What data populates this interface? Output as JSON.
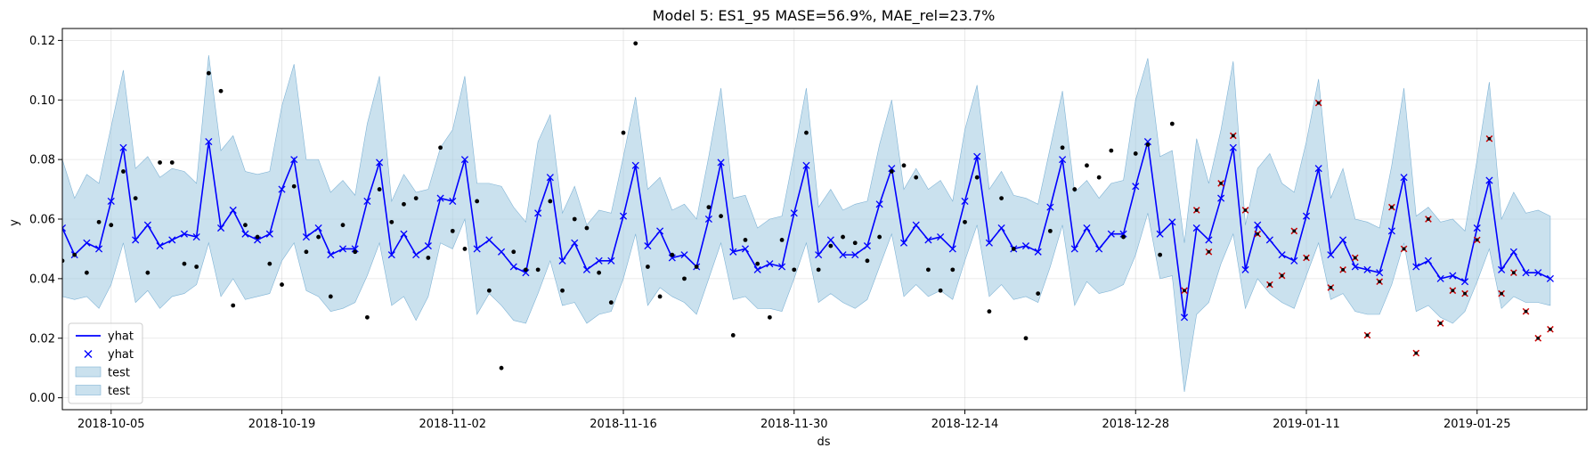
{
  "chart_data": {
    "type": "line",
    "title": "Model 5: ES1_95 MASE=56.9%, MAE_rel=23.7%",
    "xlabel": "ds",
    "ylabel": "y",
    "start_date": "2018-10-01",
    "xlim": [
      "2018-10-01",
      "2019-02-03"
    ],
    "ylim": [
      -0.004,
      0.124
    ],
    "grid": true,
    "x_ticks": [
      "2018-10-05",
      "2018-10-19",
      "2018-11-02",
      "2018-11-16",
      "2018-11-30",
      "2018-12-14",
      "2018-12-28",
      "2019-01-11",
      "2019-01-25"
    ],
    "y_ticks": [
      "0.00",
      "0.02",
      "0.04",
      "0.06",
      "0.08",
      "0.10",
      "0.12"
    ],
    "legend": {
      "position": "lower-left",
      "entries": [
        {
          "label": "yhat",
          "kind": "line"
        },
        {
          "label": "yhat",
          "kind": "marker"
        },
        {
          "label": "test",
          "kind": "patch"
        },
        {
          "label": "test",
          "kind": "patch"
        }
      ]
    },
    "colors": {
      "forecast": "#0000ff",
      "band": "#a6cde2",
      "band_edge": "#7fb3d5",
      "actual": "#000000",
      "test_marker": "#cc0000"
    },
    "test_start": "2019-01-01",
    "yhat": [
      0.057,
      0.048,
      0.052,
      0.05,
      0.066,
      0.084,
      0.053,
      0.058,
      0.051,
      0.053,
      0.055,
      0.054,
      0.086,
      0.057,
      0.063,
      0.055,
      0.053,
      0.055,
      0.07,
      0.08,
      0.054,
      0.057,
      0.048,
      0.05,
      0.05,
      0.066,
      0.079,
      0.048,
      0.055,
      0.048,
      0.051,
      0.067,
      0.066,
      0.08,
      0.05,
      0.053,
      0.049,
      0.044,
      0.042,
      0.062,
      0.074,
      0.046,
      0.052,
      0.043,
      0.046,
      0.046,
      0.061,
      0.078,
      0.051,
      0.056,
      0.047,
      0.048,
      0.044,
      0.06,
      0.079,
      0.049,
      0.05,
      0.043,
      0.045,
      0.044,
      0.062,
      0.078,
      0.048,
      0.053,
      0.048,
      0.048,
      0.051,
      0.065,
      0.077,
      0.052,
      0.058,
      0.053,
      0.054,
      0.05,
      0.066,
      0.081,
      0.052,
      0.057,
      0.05,
      0.051,
      0.049,
      0.064,
      0.08,
      0.05,
      0.057,
      0.05,
      0.055,
      0.055,
      0.071,
      0.086,
      0.055,
      0.059,
      0.027,
      0.057,
      0.053,
      0.067,
      0.084,
      0.043,
      0.058,
      0.053,
      0.048,
      0.046,
      0.061,
      0.077,
      0.048,
      0.053,
      0.044,
      0.043,
      0.042,
      0.056,
      0.074,
      0.044,
      0.046,
      0.04,
      0.041,
      0.039,
      0.057,
      0.073,
      0.043,
      0.049,
      0.042,
      0.042,
      0.04
    ],
    "lower": [
      0.034,
      0.033,
      0.034,
      0.03,
      0.038,
      0.052,
      0.032,
      0.036,
      0.03,
      0.034,
      0.035,
      0.038,
      0.052,
      0.034,
      0.04,
      0.033,
      0.034,
      0.035,
      0.046,
      0.052,
      0.036,
      0.034,
      0.029,
      0.03,
      0.032,
      0.041,
      0.052,
      0.031,
      0.034,
      0.026,
      0.034,
      0.052,
      0.05,
      0.06,
      0.028,
      0.035,
      0.031,
      0.026,
      0.025,
      0.035,
      0.046,
      0.031,
      0.032,
      0.025,
      0.028,
      0.029,
      0.04,
      0.055,
      0.031,
      0.037,
      0.034,
      0.032,
      0.028,
      0.04,
      0.052,
      0.033,
      0.034,
      0.03,
      0.03,
      0.029,
      0.04,
      0.052,
      0.032,
      0.035,
      0.032,
      0.03,
      0.033,
      0.044,
      0.055,
      0.034,
      0.038,
      0.034,
      0.036,
      0.033,
      0.046,
      0.058,
      0.034,
      0.038,
      0.033,
      0.034,
      0.032,
      0.044,
      0.058,
      0.031,
      0.039,
      0.035,
      0.036,
      0.038,
      0.048,
      0.062,
      0.04,
      0.041,
      0.002,
      0.028,
      0.032,
      0.045,
      0.055,
      0.03,
      0.04,
      0.035,
      0.032,
      0.03,
      0.041,
      0.052,
      0.033,
      0.035,
      0.029,
      0.028,
      0.028,
      0.038,
      0.052,
      0.029,
      0.031,
      0.027,
      0.025,
      0.029,
      0.039,
      0.05,
      0.03,
      0.034,
      0.032,
      0.032,
      0.031
    ],
    "upper": [
      0.08,
      0.067,
      0.075,
      0.072,
      0.091,
      0.11,
      0.077,
      0.081,
      0.074,
      0.077,
      0.076,
      0.072,
      0.115,
      0.083,
      0.088,
      0.076,
      0.075,
      0.076,
      0.098,
      0.112,
      0.08,
      0.08,
      0.069,
      0.073,
      0.068,
      0.092,
      0.108,
      0.066,
      0.075,
      0.069,
      0.07,
      0.084,
      0.09,
      0.108,
      0.072,
      0.072,
      0.071,
      0.064,
      0.059,
      0.086,
      0.095,
      0.062,
      0.071,
      0.058,
      0.063,
      0.062,
      0.081,
      0.101,
      0.07,
      0.074,
      0.063,
      0.065,
      0.06,
      0.081,
      0.104,
      0.067,
      0.068,
      0.057,
      0.06,
      0.061,
      0.082,
      0.104,
      0.064,
      0.07,
      0.063,
      0.065,
      0.066,
      0.085,
      0.1,
      0.07,
      0.077,
      0.07,
      0.073,
      0.066,
      0.09,
      0.105,
      0.07,
      0.076,
      0.068,
      0.067,
      0.065,
      0.084,
      0.103,
      0.069,
      0.073,
      0.067,
      0.072,
      0.073,
      0.1,
      0.114,
      0.081,
      0.083,
      0.052,
      0.087,
      0.072,
      0.09,
      0.113,
      0.058,
      0.077,
      0.082,
      0.072,
      0.069,
      0.086,
      0.107,
      0.067,
      0.077,
      0.06,
      0.059,
      0.057,
      0.078,
      0.104,
      0.061,
      0.064,
      0.059,
      0.06,
      0.056,
      0.08,
      0.106,
      0.06,
      0.069,
      0.062,
      0.063,
      0.061
    ],
    "actual": [
      [
        0,
        0.046
      ],
      [
        1,
        0.048
      ],
      [
        2,
        0.042
      ],
      [
        3,
        0.059
      ],
      [
        4,
        0.058
      ],
      [
        5,
        0.076
      ],
      [
        6,
        0.067
      ],
      [
        7,
        0.042
      ],
      [
        8,
        0.079
      ],
      [
        9,
        0.079
      ],
      [
        10,
        0.045
      ],
      [
        11,
        0.044
      ],
      [
        12,
        0.109
      ],
      [
        13,
        0.103
      ],
      [
        14,
        0.031
      ],
      [
        15,
        0.058
      ],
      [
        16,
        0.054
      ],
      [
        17,
        0.045
      ],
      [
        18,
        0.038
      ],
      [
        19,
        0.071
      ],
      [
        20,
        0.049
      ],
      [
        21,
        0.054
      ],
      [
        22,
        0.034
      ],
      [
        23,
        0.058
      ],
      [
        24,
        0.049
      ],
      [
        25,
        0.027
      ],
      [
        26,
        0.07
      ],
      [
        27,
        0.059
      ],
      [
        28,
        0.065
      ],
      [
        29,
        0.067
      ],
      [
        30,
        0.047
      ],
      [
        31,
        0.084
      ],
      [
        32,
        0.056
      ],
      [
        33,
        0.05
      ],
      [
        34,
        0.066
      ],
      [
        35,
        0.036
      ],
      [
        36,
        0.01
      ],
      [
        37,
        0.049
      ],
      [
        38,
        0.043
      ],
      [
        39,
        0.043
      ],
      [
        40,
        0.066
      ],
      [
        41,
        0.036
      ],
      [
        42,
        0.06
      ],
      [
        43,
        0.057
      ],
      [
        44,
        0.042
      ],
      [
        45,
        0.032
      ],
      [
        46,
        0.089
      ],
      [
        47,
        0.119
      ],
      [
        48,
        0.044
      ],
      [
        49,
        0.034
      ],
      [
        50,
        0.048
      ],
      [
        51,
        0.04
      ],
      [
        52,
        0.044
      ],
      [
        53,
        0.064
      ],
      [
        54,
        0.061
      ],
      [
        55,
        0.021
      ],
      [
        56,
        0.053
      ],
      [
        57,
        0.045
      ],
      [
        58,
        0.027
      ],
      [
        59,
        0.053
      ],
      [
        60,
        0.043
      ],
      [
        61,
        0.089
      ],
      [
        62,
        0.043
      ],
      [
        63,
        0.051
      ],
      [
        64,
        0.054
      ],
      [
        65,
        0.052
      ],
      [
        66,
        0.046
      ],
      [
        67,
        0.054
      ],
      [
        68,
        0.076
      ],
      [
        69,
        0.078
      ],
      [
        70,
        0.074
      ],
      [
        71,
        0.043
      ],
      [
        72,
        0.036
      ],
      [
        73,
        0.043
      ],
      [
        74,
        0.059
      ],
      [
        75,
        0.074
      ],
      [
        76,
        0.029
      ],
      [
        77,
        0.067
      ],
      [
        78,
        0.05
      ],
      [
        79,
        0.02
      ],
      [
        80,
        0.035
      ],
      [
        81,
        0.056
      ],
      [
        82,
        0.084
      ],
      [
        83,
        0.07
      ],
      [
        84,
        0.078
      ],
      [
        85,
        0.074
      ],
      [
        86,
        0.083
      ],
      [
        87,
        0.054
      ],
      [
        88,
        0.082
      ],
      [
        89,
        0.085
      ],
      [
        90,
        0.048
      ],
      [
        91,
        0.092
      ]
    ],
    "test": [
      [
        92,
        0.036
      ],
      [
        93,
        0.063
      ],
      [
        94,
        0.049
      ],
      [
        95,
        0.072
      ],
      [
        96,
        0.088
      ],
      [
        97,
        0.063
      ],
      [
        98,
        0.055
      ],
      [
        99,
        0.038
      ],
      [
        100,
        0.041
      ],
      [
        101,
        0.056
      ],
      [
        102,
        0.047
      ],
      [
        103,
        0.099
      ],
      [
        104,
        0.037
      ],
      [
        105,
        0.043
      ],
      [
        106,
        0.047
      ],
      [
        107,
        0.021
      ],
      [
        108,
        0.039
      ],
      [
        109,
        0.064
      ],
      [
        110,
        0.05
      ],
      [
        111,
        0.015
      ],
      [
        112,
        0.06
      ],
      [
        113,
        0.025
      ],
      [
        114,
        0.036
      ],
      [
        115,
        0.035
      ],
      [
        116,
        0.053
      ],
      [
        117,
        0.087
      ],
      [
        118,
        0.035
      ],
      [
        119,
        0.042
      ],
      [
        120,
        0.029
      ],
      [
        121,
        0.02
      ],
      [
        122,
        0.023
      ]
    ]
  }
}
